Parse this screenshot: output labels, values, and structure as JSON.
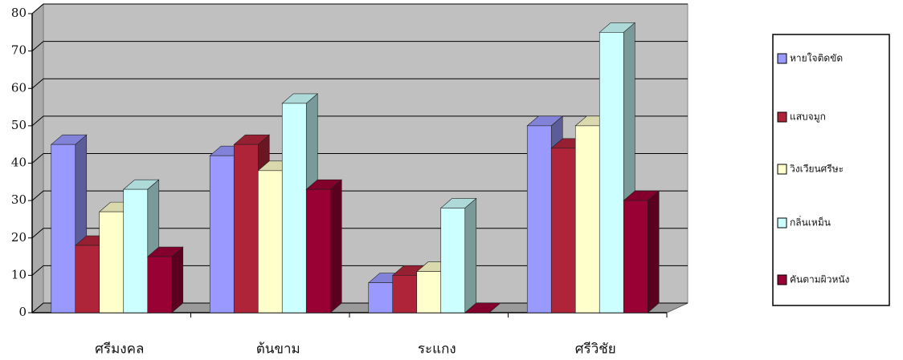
{
  "chart_data": {
    "type": "bar3d",
    "categories": [
      "ศรีมงคล",
      "ต้นขาม",
      "ระแกง",
      "ศรีวิชัย"
    ],
    "series": [
      {
        "name": "หายใจติดขัด",
        "color": "#9999ff",
        "values": [
          45,
          42,
          8,
          50
        ]
      },
      {
        "name": "แสบจมูก",
        "color": "#b0243a",
        "values": [
          18,
          45,
          10,
          44
        ]
      },
      {
        "name": "วิงเวียนศรีษะ",
        "color": "#ffffcc",
        "values": [
          27,
          38,
          11,
          50
        ]
      },
      {
        "name": "กลิ่นเหม็น",
        "color": "#ccffff",
        "values": [
          33,
          56,
          28,
          75
        ]
      },
      {
        "name": "คันตามผิวหนัง",
        "color": "#990033",
        "values": [
          15,
          33,
          0,
          30
        ]
      }
    ],
    "ylim": [
      0,
      80
    ],
    "yticks": [
      0,
      10,
      20,
      30,
      40,
      50,
      60,
      70,
      80
    ],
    "grid": true
  }
}
